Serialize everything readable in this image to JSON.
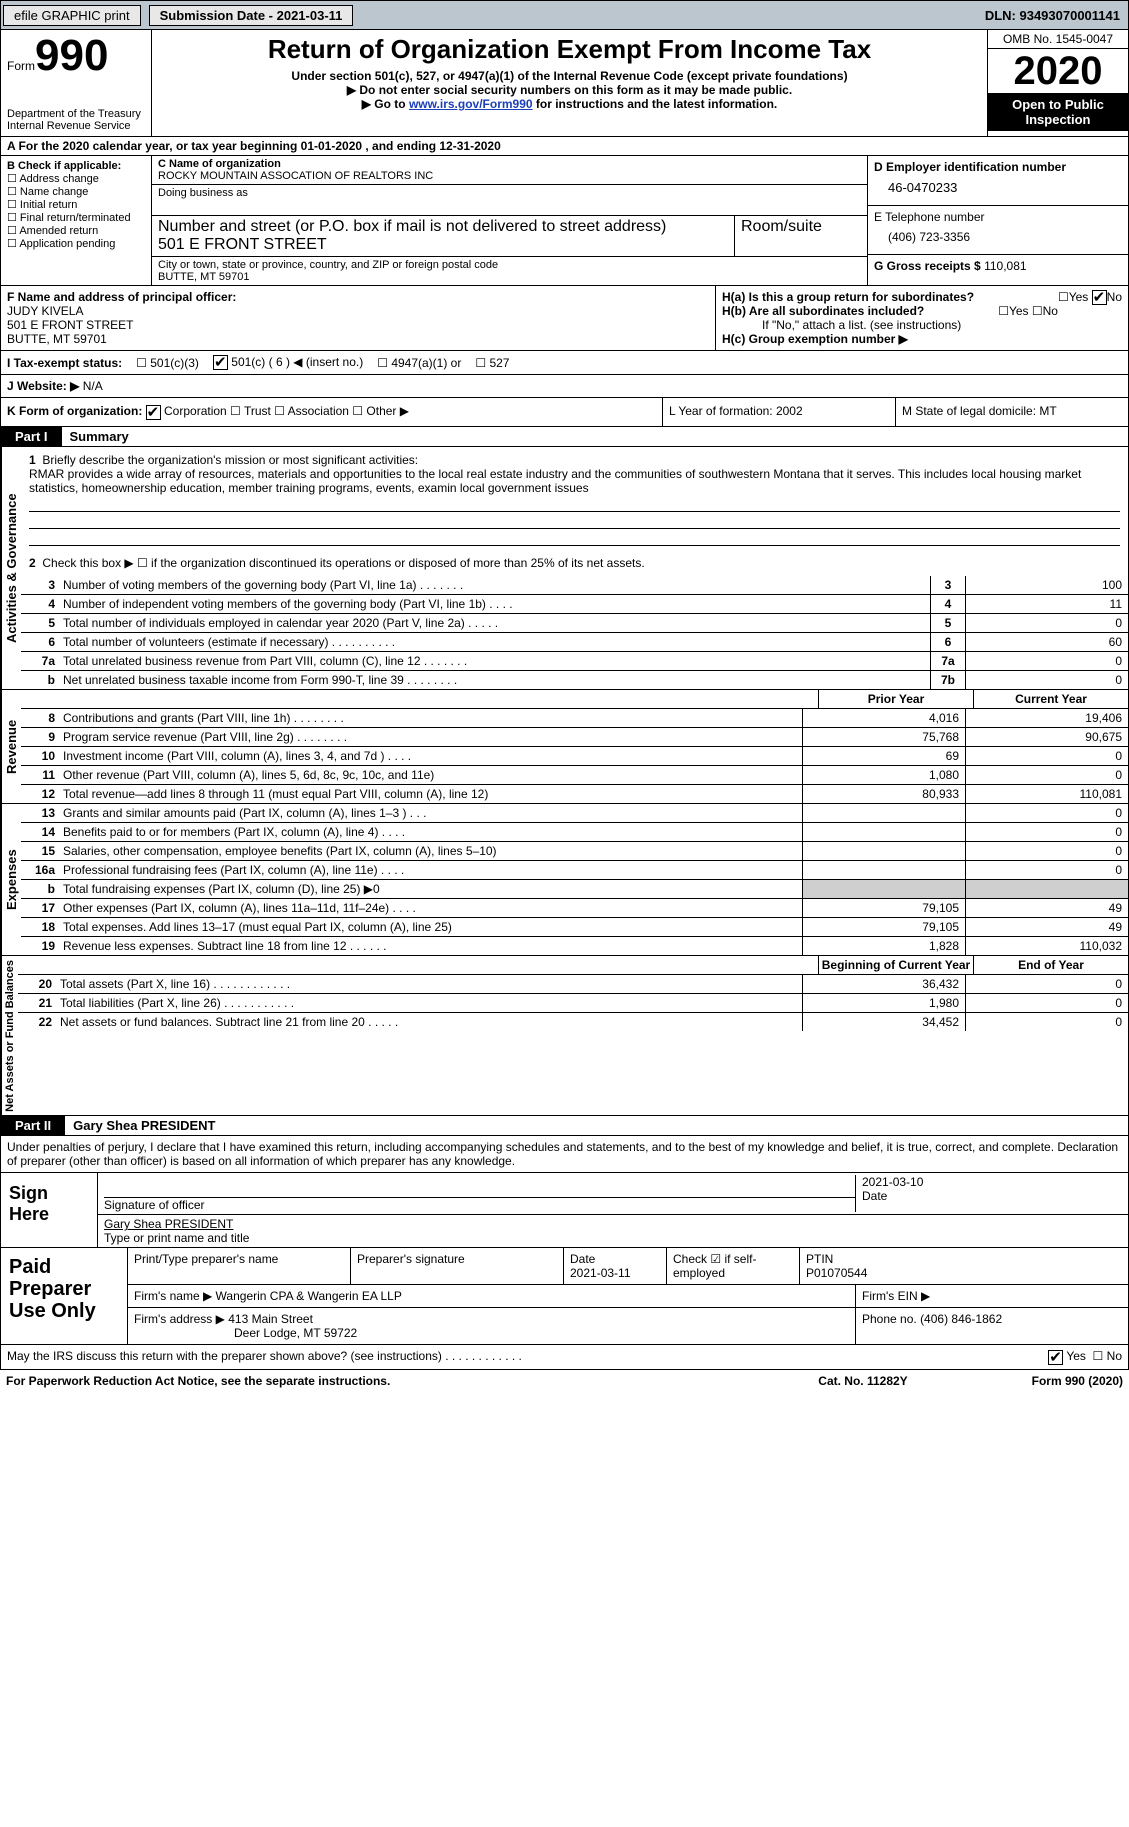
{
  "colors": {
    "bg_top": "#bcc6ce",
    "black": "#000000",
    "link": "#1a3fb8",
    "shade": "#cfcfcf"
  },
  "topbar": {
    "efile": "efile GRAPHIC print",
    "submission": "Submission Date - 2021-03-11",
    "dln": "DLN: 93493070001141"
  },
  "header": {
    "form_word": "Form",
    "form_num": "990",
    "dept": "Department of the Treasury\nInternal Revenue Service",
    "title": "Return of Organization Exempt From Income Tax",
    "subtitle": "Under section 501(c), 527, or 4947(a)(1) of the Internal Revenue Code (except private foundations)",
    "note1": "▶ Do not enter social security numbers on this form as it may be made public.",
    "note2_pre": "▶ Go to ",
    "note2_link": "www.irs.gov/Form990",
    "note2_post": " for instructions and the latest information.",
    "omb": "OMB No. 1545-0047",
    "year": "2020",
    "open": "Open to Public Inspection"
  },
  "period": "A For the 2020 calendar year, or tax year beginning 01-01-2020    , and ending 12-31-2020",
  "boxB": {
    "title": "B Check if applicable:",
    "items": [
      "Address change",
      "Name change",
      "Initial return",
      "Final return/terminated",
      "Amended return",
      "Application pending"
    ]
  },
  "boxC": {
    "name_lbl": "C Name of organization",
    "name": "ROCKY MOUNTAIN ASSOCATION OF REALTORS INC",
    "dba_lbl": "Doing business as",
    "dba": "",
    "addr_lbl": "Number and street (or P.O. box if mail is not delivered to street address)",
    "room_lbl": "Room/suite",
    "addr": "501 E FRONT STREET",
    "city_lbl": "City or town, state or province, country, and ZIP or foreign postal code",
    "city": "BUTTE, MT  59701"
  },
  "boxD": {
    "ein_lbl": "D Employer identification number",
    "ein": "46-0470233",
    "phone_lbl": "E Telephone number",
    "phone": "(406) 723-3356",
    "gross_lbl": "G Gross receipts $",
    "gross": "110,081"
  },
  "boxF": {
    "lbl": "F Name and address of principal officer:",
    "name": "JUDY KIVELA",
    "addr1": "501 E FRONT STREET",
    "addr2": "BUTTE, MT  59701"
  },
  "boxH": {
    "a": "H(a)  Is this a group return for subordinates?",
    "a_yes": "Yes",
    "a_no": "No",
    "b": "H(b)  Are all subordinates included?",
    "b_note": "If \"No,\" attach a list. (see instructions)",
    "c": "H(c)  Group exemption number ▶"
  },
  "taxI": {
    "lbl": "I   Tax-exempt status:",
    "opts": [
      "501(c)(3)",
      "501(c) ( 6 ) ◀ (insert no.)",
      "4947(a)(1) or",
      "527"
    ],
    "checked": 1
  },
  "web": {
    "lbl": "J   Website: ▶",
    "val": "N/A"
  },
  "rowK": {
    "lbl": "K Form of organization:",
    "opts": [
      "Corporation",
      "Trust",
      "Association",
      "Other ▶"
    ],
    "checked": 0,
    "L": "L Year of formation: 2002",
    "M": "M State of legal domicile: MT"
  },
  "part1": {
    "title": "Part I",
    "name": "Summary",
    "q1": "Briefly describe the organization's mission or most significant activities:",
    "mission": "RMAR provides a wide array of resources, materials and opportunities to the local real estate industry and the communities of southwestern Montana that it serves. This includes local housing market statistics, homeownership education, member training programs, events, examin local government issues",
    "q2": "Check this box ▶ ☐  if the organization discontinued its operations or disposed of more than 25% of its net assets.",
    "vtab1": "Activities & Governance",
    "lines_gov": [
      {
        "n": "3",
        "t": "Number of voting members of the governing body (Part VI, line 1a)   .    .    .    .    .    .    .",
        "b": "3",
        "v": "100"
      },
      {
        "n": "4",
        "t": "Number of independent voting members of the governing body (Part VI, line 1b)   .    .    .    .",
        "b": "4",
        "v": "11"
      },
      {
        "n": "5",
        "t": "Total number of individuals employed in calendar year 2020 (Part V, line 2a)   .    .    .    .    .",
        "b": "5",
        "v": "0"
      },
      {
        "n": "6",
        "t": "Total number of volunteers (estimate if necessary)   .    .    .    .    .    .    .    .    .    .",
        "b": "6",
        "v": "60"
      },
      {
        "n": "7a",
        "t": "Total unrelated business revenue from Part VIII, column (C), line 12   .    .    .    .    .    .    .",
        "b": "7a",
        "v": "0"
      },
      {
        "n": "b",
        "t": "Net unrelated business taxable income from Form 990-T, line 39    .    .    .    .    .    .    .    .",
        "b": "7b",
        "v": "0"
      }
    ],
    "vtab2": "Revenue",
    "col_prior": "Prior Year",
    "col_curr": "Current Year",
    "lines_rev": [
      {
        "n": "8",
        "t": "Contributions and grants (Part VIII, line 1h)   .    .    .    .    .    .    .    .",
        "p": "4,016",
        "c": "19,406"
      },
      {
        "n": "9",
        "t": "Program service revenue (Part VIII, line 2g)   .    .    .    .    .    .    .    .",
        "p": "75,768",
        "c": "90,675"
      },
      {
        "n": "10",
        "t": "Investment income (Part VIII, column (A), lines 3, 4, and 7d )   .    .    .    .",
        "p": "69",
        "c": "0"
      },
      {
        "n": "11",
        "t": "Other revenue (Part VIII, column (A), lines 5, 6d, 8c, 9c, 10c, and 11e)",
        "p": "1,080",
        "c": "0"
      },
      {
        "n": "12",
        "t": "Total revenue—add lines 8 through 11 (must equal Part VIII, column (A), line 12)",
        "p": "80,933",
        "c": "110,081"
      }
    ],
    "vtab3": "Expenses",
    "lines_exp": [
      {
        "n": "13",
        "t": "Grants and similar amounts paid (Part IX, column (A), lines 1–3 )  .    .    .",
        "p": "",
        "c": "0"
      },
      {
        "n": "14",
        "t": "Benefits paid to or for members (Part IX, column (A), line 4)   .    .    .    .",
        "p": "",
        "c": "0"
      },
      {
        "n": "15",
        "t": "Salaries, other compensation, employee benefits (Part IX, column (A), lines 5–10)",
        "p": "",
        "c": "0"
      },
      {
        "n": "16a",
        "t": "Professional fundraising fees (Part IX, column (A), line 11e)   .    .    .    .",
        "p": "",
        "c": "0"
      },
      {
        "n": "b",
        "t": "Total fundraising expenses (Part IX, column (D), line 25) ▶0",
        "p": "shade",
        "c": "shade"
      },
      {
        "n": "17",
        "t": "Other expenses (Part IX, column (A), lines 11a–11d, 11f–24e)   .    .    .    .",
        "p": "79,105",
        "c": "49"
      },
      {
        "n": "18",
        "t": "Total expenses. Add lines 13–17 (must equal Part IX, column (A), line 25)",
        "p": "79,105",
        "c": "49"
      },
      {
        "n": "19",
        "t": "Revenue less expenses. Subtract line 18 from line 12   .    .    .    .    .    .",
        "p": "1,828",
        "c": "110,032"
      }
    ],
    "vtab4": "Net Assets or Fund Balances",
    "col_beg": "Beginning of Current Year",
    "col_end": "End of Year",
    "lines_na": [
      {
        "n": "20",
        "t": "Total assets (Part X, line 16)   .    .    .    .    .    .    .    .    .    .    .    .",
        "p": "36,432",
        "c": "0"
      },
      {
        "n": "21",
        "t": "Total liabilities (Part X, line 26)   .    .    .    .    .    .    .    .    .    .    .",
        "p": "1,980",
        "c": "0"
      },
      {
        "n": "22",
        "t": "Net assets or fund balances. Subtract line 21 from line 20   .    .    .    .    .",
        "p": "34,452",
        "c": "0"
      }
    ]
  },
  "part2": {
    "title": "Part II",
    "name": "Gary Shea  PRESIDENT",
    "decl": "Under penalties of perjury, I declare that I have examined this return, including accompanying schedules and statements, and to the best of my knowledge and belief, it is true, correct, and complete. Declaration of preparer (other than officer) is based on all information of which preparer has any knowledge.",
    "sign_here": "Sign Here",
    "sig_lbl": "Signature of officer",
    "date_lbl": "Date",
    "date": "2021-03-10",
    "name_lbl": "Type or print name and title",
    "paid": "Paid Preparer Use Only",
    "p_name_lbl": "Print/Type preparer's name",
    "p_sig_lbl": "Preparer's signature",
    "p_date_lbl": "Date",
    "p_date": "2021-03-11",
    "p_chk_lbl": "Check ☑ if self-employed",
    "ptin_lbl": "PTIN",
    "ptin": "P01070544",
    "firm_name_lbl": "Firm's name    ▶",
    "firm_name": "Wangerin CPA & Wangerin EA LLP",
    "firm_ein_lbl": "Firm's EIN ▶",
    "firm_ein": "",
    "firm_addr_lbl": "Firm's address ▶",
    "firm_addr": "413 Main Street",
    "firm_city": "Deer Lodge, MT  59722",
    "firm_phone_lbl": "Phone no.",
    "firm_phone": "(406) 846-1862"
  },
  "footer": {
    "discuss": "May the IRS discuss this return with the preparer shown above? (see instructions)   .    .    .    .    .    .    .    .    .    .    .    .",
    "yes": "Yes",
    "no": "No",
    "pra": "For Paperwork Reduction Act Notice, see the separate instructions.",
    "cat": "Cat. No. 11282Y",
    "form": "Form 990 (2020)"
  }
}
